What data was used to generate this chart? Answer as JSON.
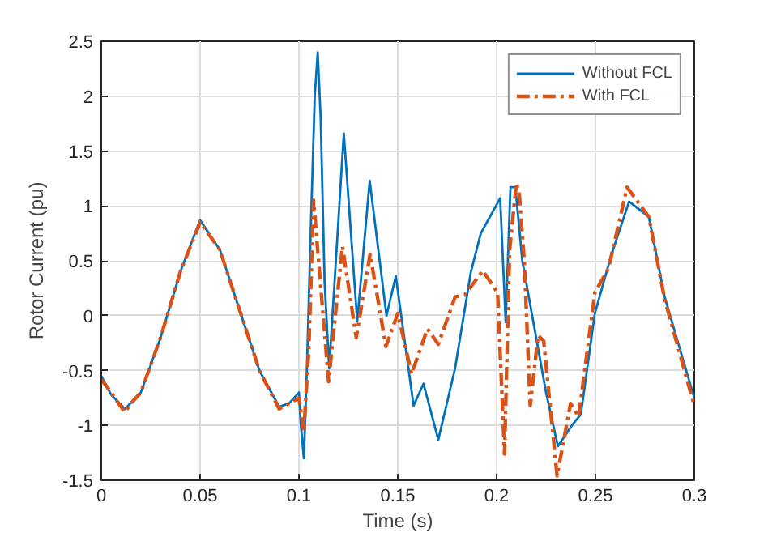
{
  "chart_data": {
    "type": "line",
    "xlabel": "Time (s)",
    "ylabel": "Rotor Current (pu)",
    "xlim": [
      0,
      0.3
    ],
    "ylim": [
      -1.5,
      2.5
    ],
    "xticks": [
      0,
      0.05,
      0.1,
      0.15,
      0.2,
      0.25,
      0.3
    ],
    "yticks": [
      -1.5,
      -1,
      -0.5,
      0,
      0.5,
      1,
      1.5,
      2,
      2.5
    ],
    "grid": true,
    "legend": "top right",
    "series": [
      {
        "name": "Without FCL",
        "color": "#0072bd",
        "line_style": "solid",
        "x": [
          0,
          0.005,
          0.012,
          0.02,
          0.03,
          0.04,
          0.05,
          0.06,
          0.07,
          0.08,
          0.09,
          0.095,
          0.1,
          0.101,
          0.1025,
          0.104,
          0.106,
          0.108,
          0.1095,
          0.111,
          0.113,
          0.1153,
          0.1227,
          0.1295,
          0.1358,
          0.1443,
          0.149,
          0.158,
          0.163,
          0.1705,
          0.179,
          0.187,
          0.192,
          0.2018,
          0.2046,
          0.207,
          0.2095,
          0.213,
          0.22,
          0.225,
          0.231,
          0.2385,
          0.2426,
          0.2497,
          0.258,
          0.267,
          0.277,
          0.285,
          0.3
        ],
        "values": [
          -0.55,
          -0.72,
          -0.85,
          -0.7,
          -0.2,
          0.4,
          0.87,
          0.6,
          0.05,
          -0.5,
          -0.83,
          -0.8,
          -0.7,
          -1.0,
          -1.3,
          -0.5,
          0.8,
          2.0,
          2.4,
          1.8,
          0.3,
          -0.48,
          1.66,
          -0.05,
          1.23,
          0.0,
          0.36,
          -0.82,
          -0.62,
          -1.13,
          -0.48,
          0.4,
          0.75,
          1.07,
          -0.06,
          1.17,
          1.17,
          0.5,
          -0.2,
          -0.7,
          -1.19,
          -0.99,
          -0.9,
          0.02,
          0.55,
          1.04,
          0.9,
          0.17,
          -0.75
        ]
      },
      {
        "name": "With FCL",
        "color": "#d95319",
        "line_style": "dashdot",
        "x": [
          0,
          0.005,
          0.008,
          0.012,
          0.015,
          0.02,
          0.03,
          0.04,
          0.05,
          0.06,
          0.07,
          0.08,
          0.09,
          0.1,
          0.1025,
          0.105,
          0.1074,
          0.115,
          0.122,
          0.129,
          0.136,
          0.144,
          0.15,
          0.157,
          0.165,
          0.1705,
          0.179,
          0.184,
          0.193,
          0.2005,
          0.204,
          0.2066,
          0.21,
          0.2115,
          0.214,
          0.217,
          0.221,
          0.2238,
          0.2306,
          0.2374,
          0.2415,
          0.2497,
          0.2566,
          0.266,
          0.277,
          0.285,
          0.3
        ],
        "values": [
          -0.58,
          -0.7,
          -0.78,
          -0.88,
          -0.8,
          -0.7,
          -0.2,
          0.4,
          0.85,
          0.6,
          0.05,
          -0.5,
          -0.85,
          -0.75,
          -1.05,
          -0.3,
          1.05,
          -0.6,
          0.63,
          -0.2,
          0.56,
          -0.28,
          0.02,
          -0.53,
          -0.12,
          -0.26,
          0.17,
          0.19,
          0.41,
          0.21,
          -1.26,
          0.6,
          1.21,
          1.1,
          0.5,
          -0.82,
          -0.18,
          -0.23,
          -1.46,
          -0.8,
          -0.92,
          0.21,
          0.43,
          1.17,
          0.9,
          0.15,
          -0.82
        ]
      }
    ]
  }
}
